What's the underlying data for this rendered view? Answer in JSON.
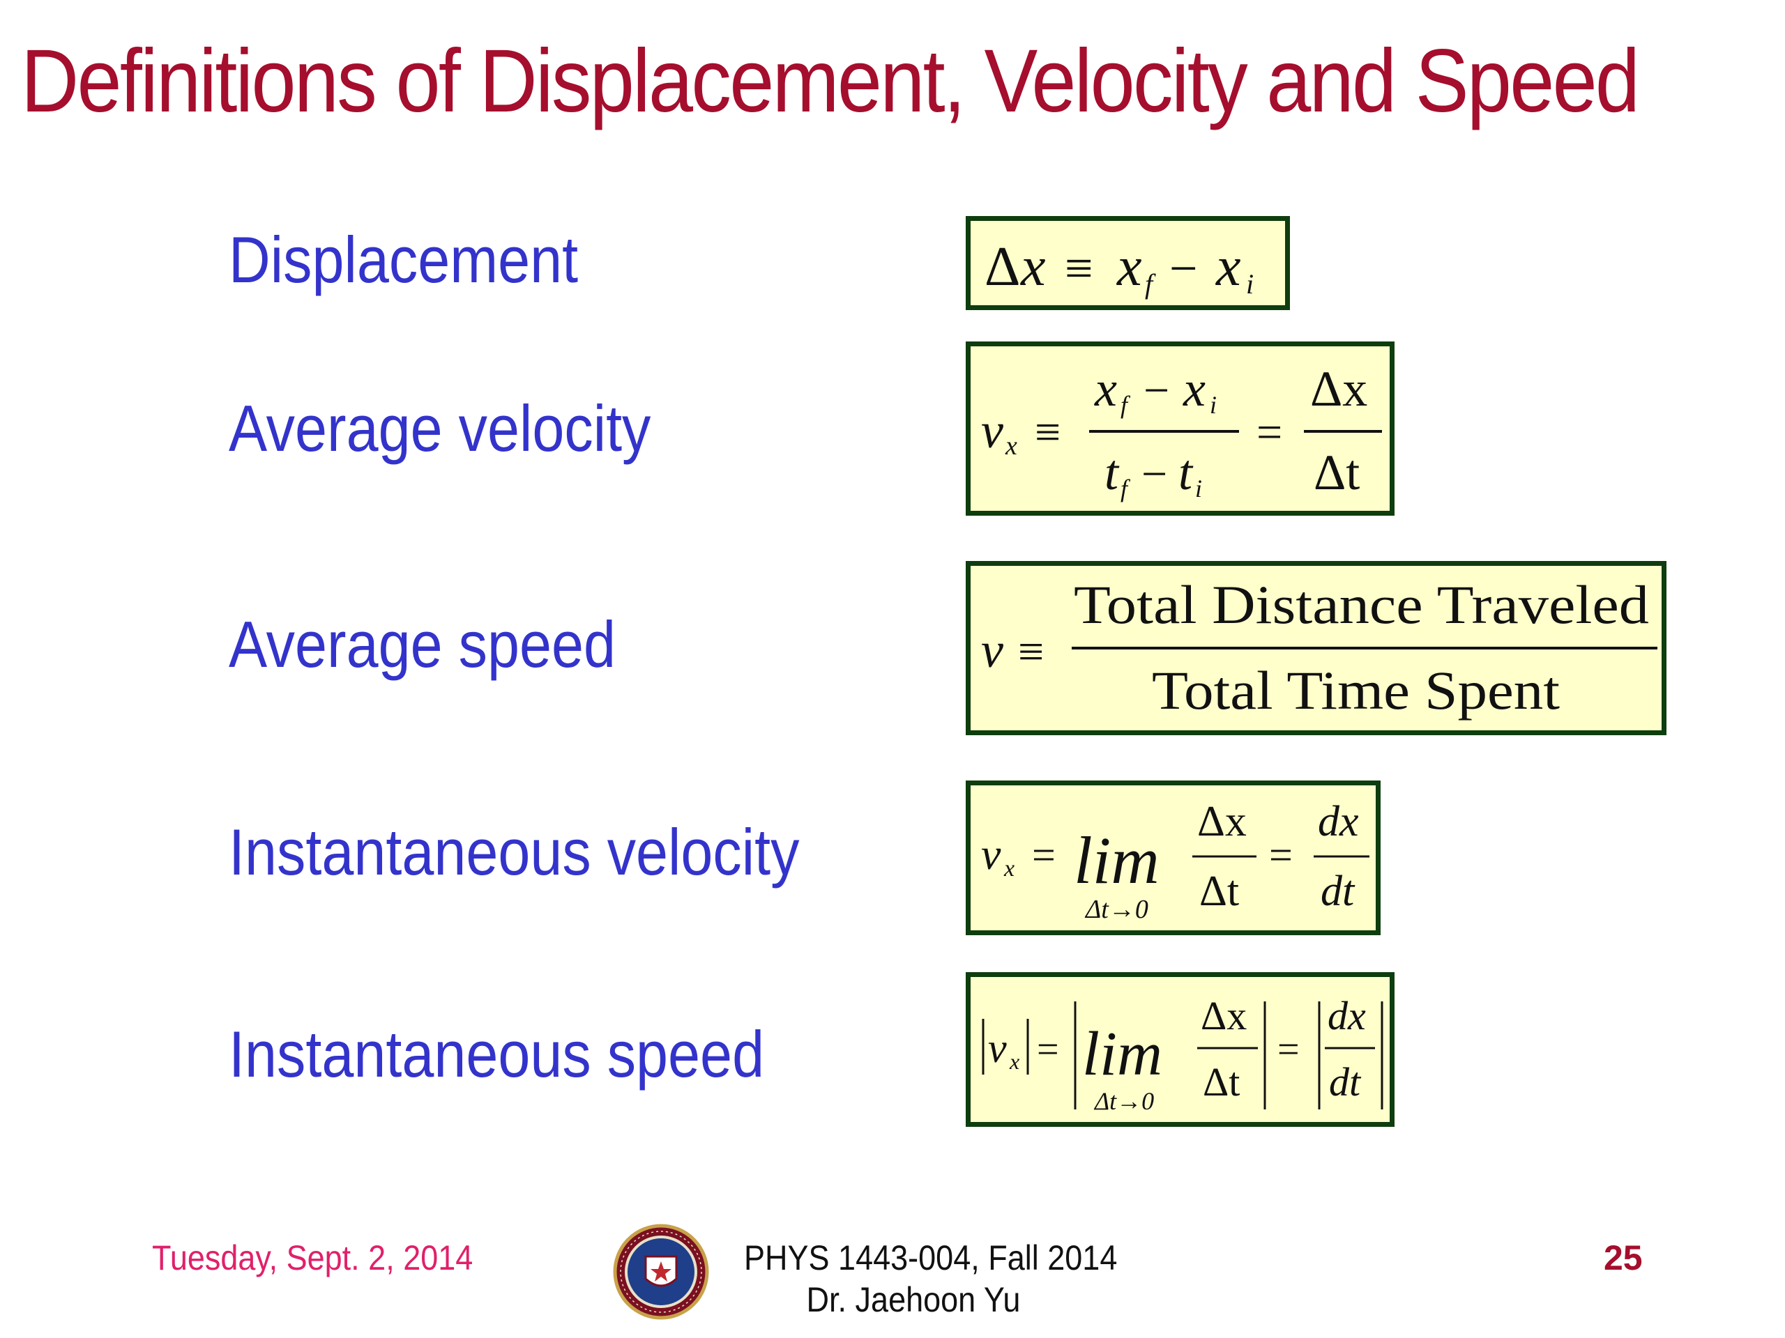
{
  "slide": {
    "title": "Definitions of Displacement, Velocity and Speed",
    "colors": {
      "title": "#a50e2d",
      "label": "#3333cc",
      "box_fill": "#ffffcc",
      "box_border": "#0e3d0e",
      "date": "#e0206a"
    }
  },
  "definitions": [
    {
      "label": "Displacement"
    },
    {
      "label": "Average velocity"
    },
    {
      "label": "Average speed"
    },
    {
      "label": "Instantaneous velocity"
    },
    {
      "label": "Instantaneous speed"
    }
  ],
  "formulas": {
    "displacement": {
      "delta": "Δ",
      "x": "x",
      "equiv": "≡",
      "xf": "x",
      "f": "f",
      "minus": "−",
      "xi": "x",
      "i": "i"
    },
    "avg_velocity": {
      "v": "v",
      "x_sub": "x",
      "equiv": "≡",
      "num_xf": "x",
      "f": "f",
      "num_minus": "−",
      "num_xi": "x",
      "i": "i",
      "den_tf": "t",
      "den_f": "f",
      "den_minus": "−",
      "den_ti": "t",
      "den_i": "i",
      "eq": "=",
      "dx": "Δx",
      "dt": "Δt"
    },
    "avg_speed": {
      "v": "v",
      "equiv": "≡",
      "numerator": "Total Distance Traveled",
      "denominator": "Total Time Spent"
    },
    "inst_velocity": {
      "v": "v",
      "x_sub": "x",
      "eq1": "=",
      "lim": "lim",
      "limit_sub": "Δt→0",
      "dx": "Δx",
      "dt": "Δt",
      "eq2": "=",
      "d_x": "dx",
      "d_t": "dt"
    },
    "inst_speed": {
      "v": "v",
      "x_sub": "x",
      "eq1": "=",
      "lim": "lim",
      "limit_sub": "Δt→0",
      "dx": "Δx",
      "dt": "Δt",
      "eq2": "=",
      "d_x": "dx",
      "d_t": "dt"
    }
  },
  "footer": {
    "date": "Tuesday, Sept. 2, 2014",
    "course": "PHYS 1443-004, Fall 2014",
    "instructor": "Dr. Jaehoon Yu",
    "page": "25",
    "logo": "university-seal-icon"
  }
}
